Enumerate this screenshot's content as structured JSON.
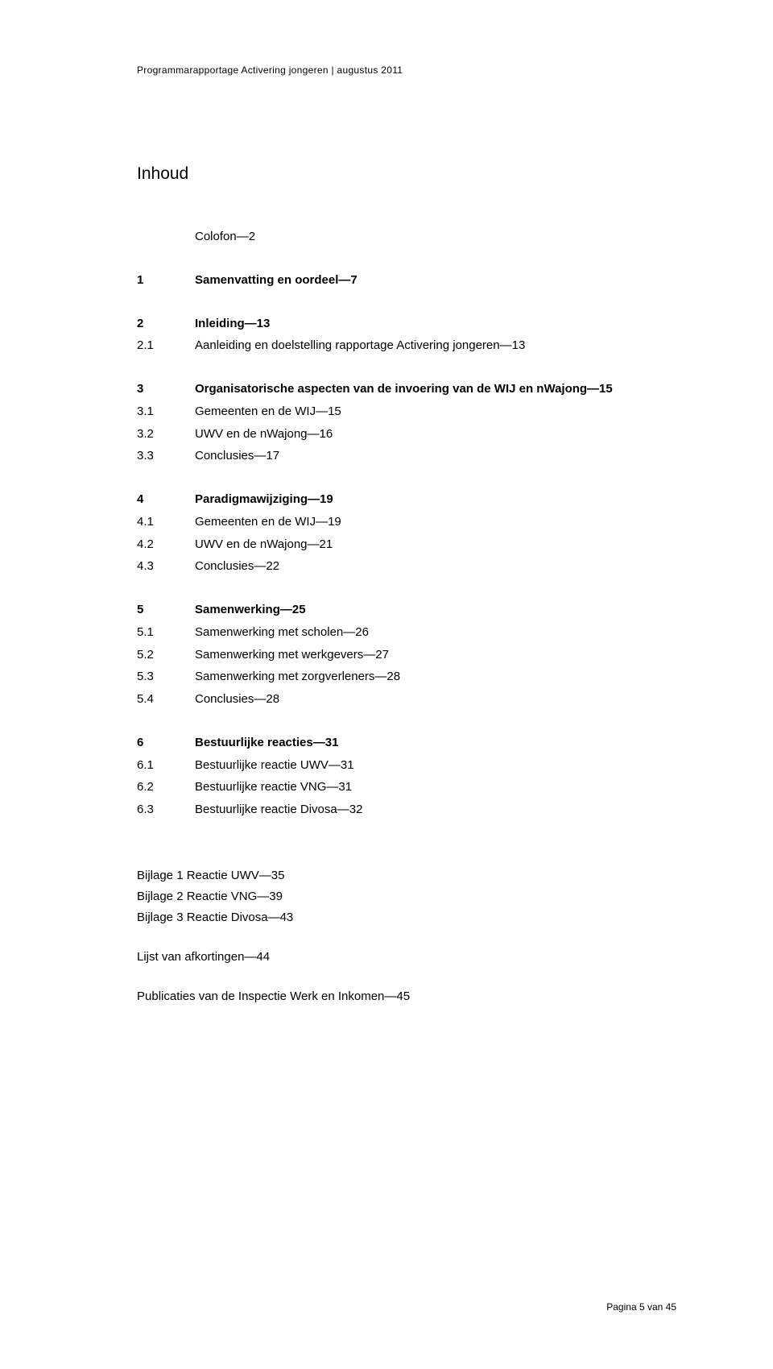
{
  "header": {
    "running": "Programmarapportage Activering jongeren | augustus 2011"
  },
  "toc": {
    "title": "Inhoud",
    "sections": [
      {
        "rows": [
          {
            "num": "",
            "label": "Colofon—2",
            "bold": false
          }
        ]
      },
      {
        "rows": [
          {
            "num": "1",
            "label": "Samenvatting en oordeel—7",
            "bold": true
          }
        ]
      },
      {
        "rows": [
          {
            "num": "2",
            "label": "Inleiding—13",
            "bold": true
          },
          {
            "num": "2.1",
            "label": "Aanleiding en doelstelling rapportage Activering jongeren—13",
            "bold": false
          }
        ]
      },
      {
        "rows": [
          {
            "num": "3",
            "label": "Organisatorische aspecten van de invoering van de WIJ en nWajong—15",
            "bold": true
          },
          {
            "num": "3.1",
            "label": "Gemeenten en de WIJ—15",
            "bold": false
          },
          {
            "num": "3.2",
            "label": "UWV en de nWajong—16",
            "bold": false
          },
          {
            "num": "3.3",
            "label": "Conclusies—17",
            "bold": false
          }
        ]
      },
      {
        "rows": [
          {
            "num": "4",
            "label": "Paradigmawijziging—19",
            "bold": true
          },
          {
            "num": "4.1",
            "label": "Gemeenten en de WIJ—19",
            "bold": false
          },
          {
            "num": "4.2",
            "label": "UWV en de nWajong—21",
            "bold": false
          },
          {
            "num": "4.3",
            "label": "Conclusies—22",
            "bold": false
          }
        ]
      },
      {
        "rows": [
          {
            "num": "5",
            "label": "Samenwerking—25",
            "bold": true
          },
          {
            "num": "5.1",
            "label": "Samenwerking met scholen—26",
            "bold": false
          },
          {
            "num": "5.2",
            "label": "Samenwerking met werkgevers—27",
            "bold": false
          },
          {
            "num": "5.3",
            "label": "Samenwerking met zorgverleners—28",
            "bold": false
          },
          {
            "num": "5.4",
            "label": "Conclusies—28",
            "bold": false
          }
        ]
      },
      {
        "rows": [
          {
            "num": "6",
            "label": "Bestuurlijke reacties—31",
            "bold": true
          },
          {
            "num": "6.1",
            "label": "Bestuurlijke reactie UWV—31",
            "bold": false
          },
          {
            "num": "6.2",
            "label": "Bestuurlijke reactie VNG—31",
            "bold": false
          },
          {
            "num": "6.3",
            "label": "Bestuurlijke reactie Divosa—32",
            "bold": false
          }
        ]
      }
    ]
  },
  "appendix": {
    "lines": [
      "Bijlage 1 Reactie UWV—35",
      "Bijlage 2 Reactie VNG—39",
      "Bijlage 3 Reactie Divosa—43"
    ],
    "extras": [
      "Lijst van afkortingen—44",
      "Publicaties van de Inspectie Werk en Inkomen—45"
    ]
  },
  "footer": {
    "text": "Pagina 5 van 45"
  }
}
